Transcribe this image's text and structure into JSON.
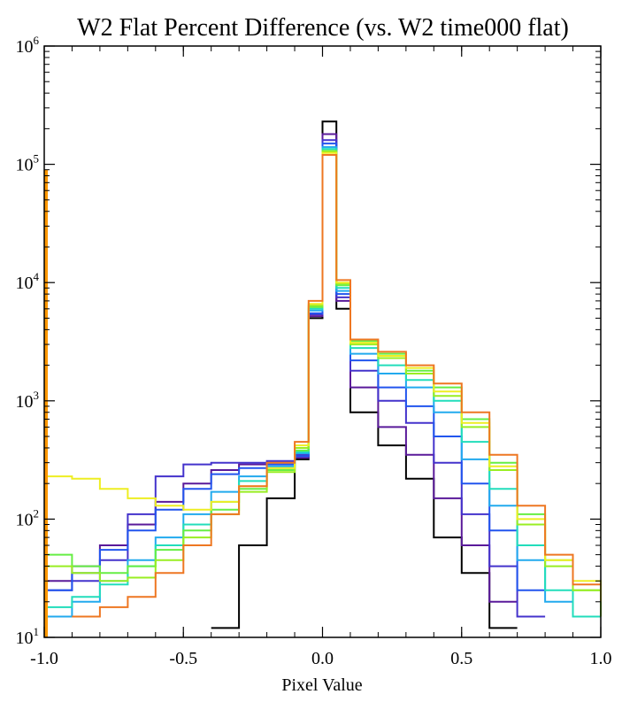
{
  "chart_data": {
    "type": "line",
    "title": "W2 Flat Percent Difference (vs. W2 time000 flat)",
    "xlabel": "Pixel Value",
    "ylabel": "",
    "xlim": [
      -1.0,
      1.0
    ],
    "ylim": [
      10,
      1000000
    ],
    "yscale": "log",
    "step": true,
    "grid": false,
    "x_ticks": [
      "-1.0",
      "-0.5",
      "0.0",
      "0.5",
      "1.0"
    ],
    "x_tick_values": [
      -1.0,
      -0.5,
      0.0,
      0.5,
      1.0
    ],
    "y_ticks": [
      {
        "base": "10",
        "exp": "1",
        "value": 10
      },
      {
        "base": "10",
        "exp": "2",
        "value": 100
      },
      {
        "base": "10",
        "exp": "3",
        "value": 1000
      },
      {
        "base": "10",
        "exp": "4",
        "value": 10000
      },
      {
        "base": "10",
        "exp": "5",
        "value": 100000
      },
      {
        "base": "10",
        "exp": "6",
        "value": 1000000
      }
    ],
    "x": [
      -1.0,
      -0.9,
      -0.8,
      -0.7,
      -0.6,
      -0.5,
      -0.4,
      -0.3,
      -0.2,
      -0.1,
      -0.05,
      0.0,
      0.05,
      0.1,
      0.2,
      0.3,
      0.4,
      0.5,
      0.6,
      0.7,
      0.8,
      0.9,
      1.0
    ],
    "series": [
      {
        "color": "#000000",
        "values": [
          null,
          null,
          null,
          null,
          null,
          null,
          12,
          60,
          150,
          320,
          5000,
          230000,
          6000,
          800,
          420,
          220,
          70,
          35,
          12,
          null,
          null,
          null,
          null
        ]
      },
      {
        "color": "#5a1a9a",
        "values": [
          30,
          40,
          60,
          90,
          140,
          200,
          260,
          290,
          300,
          330,
          5200,
          180000,
          7000,
          1300,
          600,
          350,
          150,
          60,
          20,
          null,
          null,
          null,
          null
        ]
      },
      {
        "color": "#4433cc",
        "values": [
          25,
          30,
          45,
          110,
          230,
          290,
          300,
          300,
          310,
          350,
          5400,
          160000,
          7500,
          1800,
          1000,
          650,
          300,
          110,
          40,
          15,
          null,
          null,
          null
        ]
      },
      {
        "color": "#2255ee",
        "values": [
          25,
          35,
          55,
          80,
          120,
          180,
          240,
          270,
          290,
          340,
          5500,
          150000,
          8000,
          2200,
          1300,
          900,
          500,
          200,
          80,
          25,
          null,
          null,
          null
        ]
      },
      {
        "color": "#22aaee",
        "values": [
          15,
          20,
          30,
          45,
          70,
          110,
          170,
          230,
          280,
          360,
          5800,
          140000,
          8500,
          2500,
          1700,
          1300,
          800,
          320,
          130,
          45,
          20,
          null,
          null
        ]
      },
      {
        "color": "#22ddbb",
        "values": [
          18,
          22,
          28,
          40,
          60,
          90,
          140,
          210,
          270,
          370,
          6000,
          135000,
          9000,
          2800,
          2000,
          1500,
          1000,
          450,
          180,
          60,
          25,
          15,
          null
        ]
      },
      {
        "color": "#66ee44",
        "values": [
          50,
          40,
          35,
          40,
          55,
          80,
          120,
          180,
          260,
          380,
          6200,
          130000,
          9500,
          3200,
          2500,
          1800,
          1300,
          700,
          300,
          110,
          45,
          25,
          20
        ]
      },
      {
        "color": "#99ee22",
        "values": [
          40,
          35,
          30,
          32,
          45,
          70,
          110,
          170,
          250,
          400,
          6400,
          128000,
          9800,
          3000,
          2300,
          1700,
          1100,
          600,
          260,
          90,
          40,
          25,
          15
        ]
      },
      {
        "color": "#eeee22",
        "values": [
          230,
          220,
          180,
          150,
          130,
          120,
          140,
          190,
          270,
          420,
          6600,
          125000,
          10000,
          3100,
          2400,
          1900,
          1200,
          650,
          280,
          100,
          45,
          30,
          20
        ]
      },
      {
        "color": "#ee7722",
        "values": [
          null,
          15,
          18,
          22,
          35,
          60,
          110,
          190,
          300,
          450,
          7000,
          120000,
          10500,
          3300,
          2600,
          2000,
          1400,
          800,
          350,
          130,
          50,
          28,
          null
        ]
      }
    ],
    "edge_spike": {
      "x": -1.0,
      "value": 90000,
      "color": "#ff9900"
    }
  }
}
